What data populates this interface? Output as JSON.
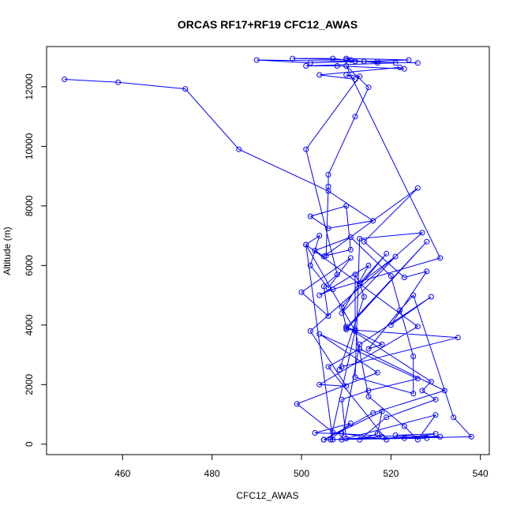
{
  "chart_data": {
    "type": "line",
    "title": "ORCAS RF17+RF19 CFC12_AWAS",
    "xlabel": "CFC12_AWAS",
    "ylabel": "Altitude (m)",
    "xlim": [
      443,
      542
    ],
    "ylim": [
      -350,
      13350
    ],
    "xticks": [
      460,
      480,
      500,
      520,
      540
    ],
    "yticks": [
      0,
      2000,
      4000,
      6000,
      8000,
      10000,
      12000
    ],
    "grid": false,
    "legend": "none",
    "series_color": "#0000ff",
    "marker": "open-circle",
    "series": [
      {
        "x": [
          447,
          459,
          474,
          486,
          506,
          516,
          506,
          502,
          510,
          511,
          505.5,
          506,
          506,
          512,
          515,
          510,
          531,
          507,
          504,
          515,
          509,
          521,
          513,
          519,
          509,
          510,
          528,
          510,
          535,
          509,
          508.5,
          514,
          513,
          512,
          512,
          515,
          523,
          526,
          530,
          510,
          509,
          515,
          526,
          504,
          517,
          499,
          507,
          519,
          506,
          513,
          532,
          516,
          505,
          518,
          517,
          513,
          519,
          530,
          527,
          529,
          510,
          512,
          518,
          515,
          522,
          525,
          534,
          538,
          523,
          530,
          521,
          531,
          505,
          528,
          509,
          503,
          511,
          506.5,
          512,
          501,
          507,
          518,
          509,
          513,
          529,
          520,
          528,
          523,
          514,
          526,
          505,
          503,
          511,
          520,
          525,
          525,
          512,
          513,
          527,
          502,
          510,
          504,
          526,
          501,
          504,
          502,
          506,
          511,
          500,
          506,
          505,
          508,
          501,
          513,
          510,
          512,
          504,
          522,
          523,
          508,
          501,
          521,
          517,
          517,
          514,
          510,
          507,
          498,
          511,
          512,
          502,
          490,
          514,
          524,
          510,
          512,
          526
        ],
        "y": [
          12250,
          12150,
          11930,
          9900,
          8500,
          7500,
          7250,
          7650,
          8000,
          6530,
          6330,
          8650,
          9050,
          11000,
          11980,
          12700,
          6250,
          5200,
          5000,
          6000,
          4400,
          6300,
          5400,
          6400,
          4600,
          3900,
          6800,
          3850,
          3580,
          2600,
          2500,
          4950,
          5400,
          5700,
          3850,
          1600,
          600,
          150,
          980,
          190,
          1500,
          1800,
          2200,
          3700,
          2400,
          1350,
          400,
          150,
          2600,
          3200,
          1800,
          1050,
          150,
          1100,
          350,
          150,
          900,
          1500,
          1800,
          2100,
          3950,
          3800,
          3350,
          3200,
          4500,
          5000,
          900,
          250,
          200,
          350,
          300,
          250,
          150,
          200,
          350,
          380,
          700,
          150,
          3800,
          6700,
          150,
          250,
          150,
          3350,
          4950,
          4000,
          5800,
          5600,
          6800,
          8600,
          6300,
          6500,
          6950,
          5650,
          2950,
          1700,
          2250,
          6900,
          7100,
          3800,
          1950,
          2000,
          3950,
          6700,
          7000,
          6000,
          5250,
          6250,
          5100,
          4300,
          5300,
          5700,
          9900,
          12350,
          12400,
          12250,
          12400,
          12650,
          12600,
          12700,
          12700,
          12800,
          12850,
          12800,
          12850,
          12900,
          12950,
          12950,
          12900,
          12850,
          12800,
          12900,
          12850,
          12900,
          12950,
          12850,
          12800
        ]
      }
    ]
  }
}
